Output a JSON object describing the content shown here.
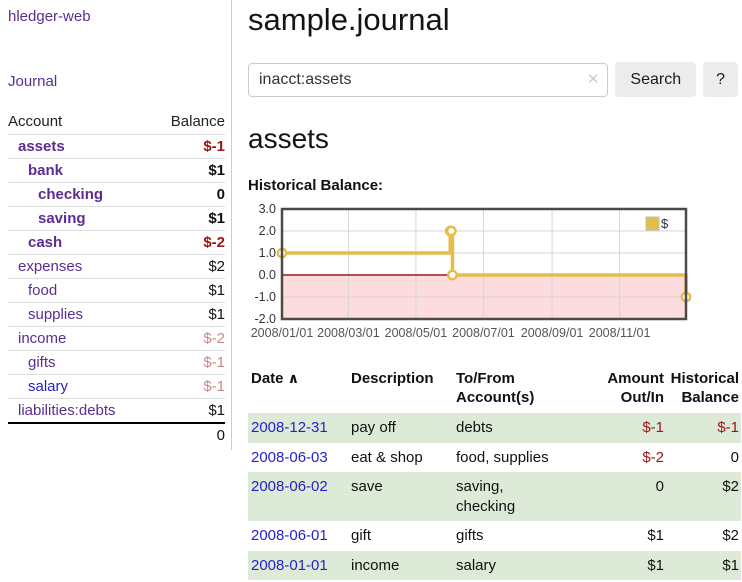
{
  "app": {
    "title": "hledger-web",
    "nav_journal": "Journal"
  },
  "colors": {
    "link_purple": "#5b2d91",
    "link_blue": "#2323cc",
    "negative_strong": "#a01414",
    "negative_weak": "#c98989",
    "row_stripe_green": "#dcead7",
    "chart_line_gold": "#e6bc4c",
    "chart_negative_fill": "#fcdcdc",
    "chart_zero_line": "#991a1a"
  },
  "sidebar": {
    "header": {
      "account": "Account",
      "balance": "Balance"
    },
    "accounts": [
      {
        "name": "assets",
        "depth": 1,
        "bold": true,
        "balance": "$-1",
        "balance_style": "neg-strong",
        "link_style": "purple"
      },
      {
        "name": "bank",
        "depth": 2,
        "bold": true,
        "balance": "$1",
        "balance_style": "",
        "link_style": "purple"
      },
      {
        "name": "checking",
        "depth": 3,
        "bold": true,
        "balance": "0",
        "balance_style": "",
        "link_style": "purple"
      },
      {
        "name": "saving",
        "depth": 3,
        "bold": true,
        "balance": "$1",
        "balance_style": "",
        "link_style": "purple"
      },
      {
        "name": "cash",
        "depth": 2,
        "bold": true,
        "balance": "$-2",
        "balance_style": "neg-strong",
        "link_style": "purple"
      },
      {
        "name": "expenses",
        "depth": 1,
        "bold": false,
        "balance": "$2",
        "balance_style": "",
        "link_style": "purple"
      },
      {
        "name": "food",
        "depth": 2,
        "bold": false,
        "balance": "$1",
        "balance_style": "",
        "link_style": "purple"
      },
      {
        "name": "supplies",
        "depth": 2,
        "bold": false,
        "balance": "$1",
        "balance_style": "",
        "link_style": "purple"
      },
      {
        "name": "income",
        "depth": 1,
        "bold": false,
        "balance": "$-2",
        "balance_style": "neg-weak",
        "link_style": "purple"
      },
      {
        "name": "gifts",
        "depth": 2,
        "bold": false,
        "balance": "$-1",
        "balance_style": "neg-weak",
        "link_style": "purple"
      },
      {
        "name": "salary",
        "depth": 2,
        "bold": false,
        "balance": "$-1",
        "balance_style": "neg-weak",
        "link_style": "blue"
      },
      {
        "name": "liabilities:debts",
        "depth": 1,
        "bold": false,
        "balance": "$1",
        "balance_style": "",
        "link_style": "purple"
      }
    ],
    "total": "0"
  },
  "header": {
    "title": "sample.journal"
  },
  "search": {
    "value": "inacct:assets",
    "clear_icon": "✕",
    "button": "Search",
    "help_button": "?"
  },
  "account_page": {
    "heading": "assets",
    "chart_label": "Historical Balance:"
  },
  "chart_data": {
    "type": "line",
    "step": true,
    "title": "Historical Balance",
    "series": [
      {
        "name": "$",
        "points": [
          [
            "2008-01-01",
            1
          ],
          [
            "2008-06-01",
            2
          ],
          [
            "2008-06-02",
            2
          ],
          [
            "2008-06-03",
            0
          ],
          [
            "2008-12-31",
            -1
          ]
        ]
      }
    ],
    "x_domain": [
      "2008-01-01",
      "2008-12-31"
    ],
    "ylim": [
      -2,
      3
    ],
    "yticks": [
      "3.0",
      "2.0",
      "1.0",
      "0.0",
      "-1.0",
      "-2.0"
    ],
    "xticks": [
      "2008/01/01",
      "2008/03/01",
      "2008/05/01",
      "2008/07/01",
      "2008/09/01",
      "2008/11/01"
    ],
    "grid": true,
    "legend_position": "top-right",
    "legend_label": "$"
  },
  "register_table": {
    "sort_icon": "∧",
    "headers": {
      "date": "Date",
      "description": "Description",
      "accounts_line1": "To/From",
      "accounts_line2": "Account(s)",
      "amount_line1": "Amount",
      "amount_line2": "Out/In",
      "balance_line1": "Historical",
      "balance_line2": "Balance"
    },
    "rows": [
      {
        "date": "2008-12-31",
        "description": "pay off",
        "accounts_lines": [
          "debts"
        ],
        "amount": "$-1",
        "amount_neg": true,
        "balance": "$-1",
        "balance_neg": true,
        "stripe": true
      },
      {
        "date": "2008-06-03",
        "description": "eat & shop",
        "accounts_lines": [
          "food, supplies"
        ],
        "amount": "$-2",
        "amount_neg": true,
        "balance": "0",
        "balance_neg": false,
        "stripe": false
      },
      {
        "date": "2008-06-02",
        "description": "save",
        "accounts_lines": [
          "saving,",
          "checking"
        ],
        "amount": "0",
        "amount_neg": false,
        "balance": "$2",
        "balance_neg": false,
        "stripe": true
      },
      {
        "date": "2008-06-01",
        "description": "gift",
        "accounts_lines": [
          "gifts"
        ],
        "amount": "$1",
        "amount_neg": false,
        "balance": "$2",
        "balance_neg": false,
        "stripe": false
      },
      {
        "date": "2008-01-01",
        "description": "income",
        "accounts_lines": [
          "salary"
        ],
        "amount": "$1",
        "amount_neg": false,
        "balance": "$1",
        "balance_neg": false,
        "stripe": true
      }
    ]
  }
}
